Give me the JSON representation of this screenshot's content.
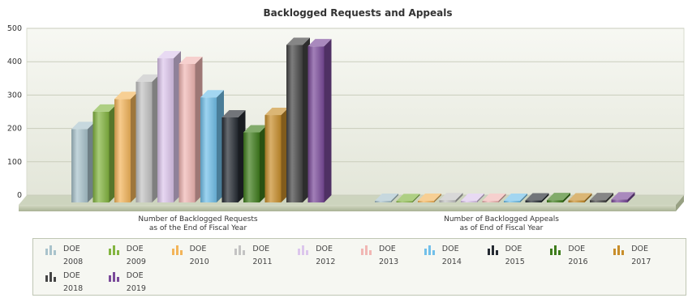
{
  "chart_data": {
    "type": "bar",
    "title": "Backlogged Requests and Appeals",
    "categories": [
      "Number of Backlogged Requests\nas of the End of Fiscal Year",
      "Number of Backlogged Appeals\nas of End of Fiscal Year"
    ],
    "ylim": [
      0,
      500
    ],
    "yticks": [
      0,
      100,
      200,
      300,
      400,
      500
    ],
    "grid": true,
    "legend_placement": "bottom",
    "series": [
      {
        "name": "DOE 2008",
        "values": [
          220,
          5
        ],
        "color": "#a9c3cc"
      },
      {
        "name": "DOE 2009",
        "values": [
          272,
          4
        ],
        "color": "#83b540"
      },
      {
        "name": "DOE 2010",
        "values": [
          310,
          5
        ],
        "color": "#f3b55a"
      },
      {
        "name": "DOE 2011",
        "values": [
          362,
          7
        ],
        "color": "#c3c3c3"
      },
      {
        "name": "DOE 2012",
        "values": [
          432,
          5
        ],
        "color": "#dcc6ec"
      },
      {
        "name": "DOE 2013",
        "values": [
          415,
          5
        ],
        "color": "#f1b7b4"
      },
      {
        "name": "DOE 2014",
        "values": [
          315,
          5
        ],
        "color": "#72c0ea"
      },
      {
        "name": "DOE 2015",
        "values": [
          255,
          6
        ],
        "color": "#262b33"
      },
      {
        "name": "DOE 2016",
        "values": [
          210,
          7
        ],
        "color": "#3f7d1c"
      },
      {
        "name": "DOE 2017",
        "values": [
          262,
          6
        ],
        "color": "#c88e2b"
      },
      {
        "name": "DOE 2018",
        "values": [
          472,
          7
        ],
        "color": "#454545"
      },
      {
        "name": "DOE 2019",
        "values": [
          468,
          9
        ],
        "color": "#7a4a9a"
      }
    ]
  }
}
